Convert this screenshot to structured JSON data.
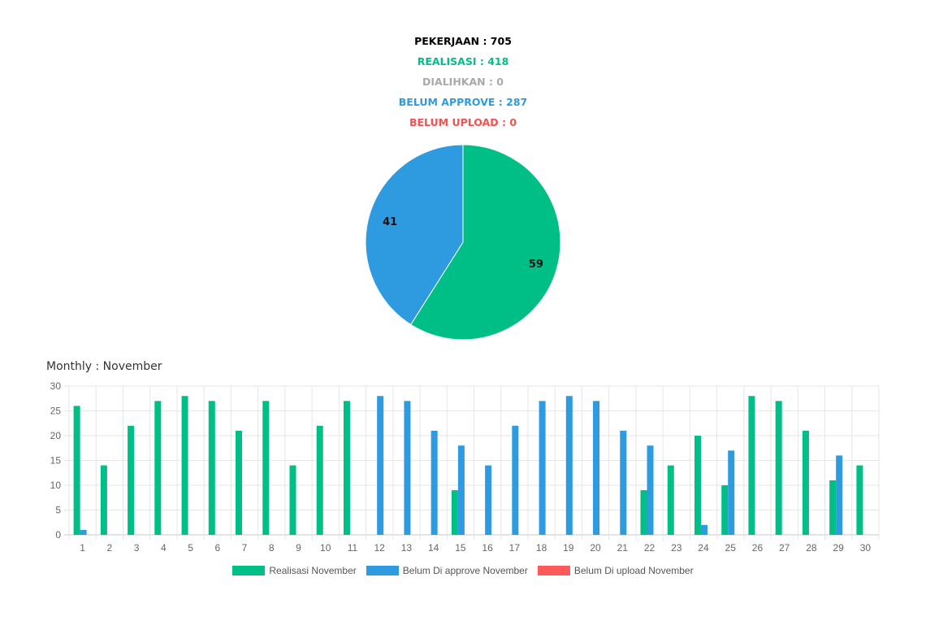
{
  "summary": {
    "pekerjaan": "PEKERJAAN : 705",
    "realisasi": "REALISASI : 418",
    "dialihkan": "DIALIHKAN : 0",
    "belum_approve": "BELUM APPROVE : 287",
    "belum_upload": "BELUM UPLOAD : 0"
  },
  "colors": {
    "pekerjaan": "#000000",
    "realisasi": "#00bf86",
    "dialihkan": "#a9a9a9",
    "belum_approve": "#2e9be0",
    "belum_upload": "#f05252"
  },
  "chart_data": [
    {
      "type": "pie",
      "categories": [
        "Realisasi",
        "Belum Approve"
      ],
      "values": [
        59,
        41
      ],
      "labels": [
        "59",
        "41"
      ],
      "colors": [
        "#00bf86",
        "#2e9be0"
      ]
    },
    {
      "type": "bar",
      "title": "Monthly : November",
      "categories": [
        "1",
        "2",
        "3",
        "4",
        "5",
        "6",
        "7",
        "8",
        "9",
        "10",
        "11",
        "12",
        "13",
        "14",
        "15",
        "16",
        "17",
        "18",
        "19",
        "20",
        "21",
        "22",
        "23",
        "24",
        "25",
        "26",
        "27",
        "28",
        "29",
        "30"
      ],
      "series": [
        {
          "name": "Realisasi November",
          "color": "#00bf86",
          "values": [
            26,
            14,
            22,
            27,
            28,
            27,
            21,
            27,
            14,
            22,
            27,
            0,
            0,
            0,
            9,
            0,
            0,
            0,
            0,
            0,
            0,
            9,
            14,
            20,
            10,
            28,
            27,
            21,
            11,
            14
          ]
        },
        {
          "name": "Belum Di approve November",
          "color": "#2e9be0",
          "values": [
            1,
            0,
            0,
            0,
            0,
            0,
            0,
            0,
            0,
            0,
            0,
            28,
            27,
            21,
            18,
            14,
            22,
            27,
            28,
            27,
            21,
            18,
            0,
            2,
            17,
            0,
            0,
            0,
            16,
            0
          ]
        },
        {
          "name": "Belum Di upload November",
          "color": "#ff5a5a",
          "values": [
            0,
            0,
            0,
            0,
            0,
            0,
            0,
            0,
            0,
            0,
            0,
            0,
            0,
            0,
            0,
            0,
            0,
            0,
            0,
            0,
            0,
            0,
            0,
            0,
            0,
            0,
            0,
            0,
            0,
            0
          ]
        }
      ],
      "ylim": [
        0,
        30
      ],
      "yticks": [
        0,
        5,
        10,
        15,
        20,
        25,
        30
      ],
      "grid": true,
      "legend": "bottom-center"
    }
  ]
}
